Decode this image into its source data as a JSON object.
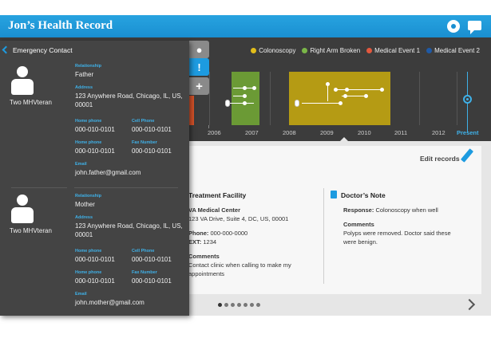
{
  "header": {
    "title": "Jon’s Health Record"
  },
  "legend": [
    {
      "label": "Colonoscopy",
      "color": "#e2bd1a"
    },
    {
      "label": "Right Arm Broken",
      "color": "#7ab648"
    },
    {
      "label": "Medical Event 1",
      "color": "#e2583e"
    },
    {
      "label": "Medical Event 2",
      "color": "#1f5aa6"
    }
  ],
  "timeline": {
    "years": [
      "2006",
      "2007",
      "2008",
      "2009",
      "2010",
      "2011",
      "2012"
    ],
    "present_label": "Present"
  },
  "panel": {
    "title": "Emergency Contact",
    "contacts": [
      {
        "name": "Two MHVteran",
        "relationship_label": "Relationship",
        "relationship": "Father",
        "address_label": "Address",
        "address": "123 Anywhere Road, Chicago, IL, US, 00001",
        "home_phone_label": "Home phone",
        "home_phone": "000-010-0101",
        "cell_phone_label": "Cell Phone",
        "cell_phone": "000-010-0101",
        "home_phone2_label": "Home phone",
        "home_phone2": "000-010-0101",
        "fax_label": "Fax Number",
        "fax": "000-010-0101",
        "email_label": "Email",
        "email": "john.father@gmail.com"
      },
      {
        "name": "Two MHVteran",
        "relationship_label": "Relationship",
        "relationship": "Mother",
        "address_label": "Address",
        "address": "123 Anywhere Road, Chicago, IL, US, 00001",
        "home_phone_label": "Home phone",
        "home_phone": "000-010-0101",
        "cell_phone_label": "Cell Phone",
        "cell_phone": "000-010-0101",
        "home_phone2_label": "Home phone",
        "home_phone2": "000-010-0101",
        "fax_label": "Fax Number",
        "fax": "000-010-0101",
        "email_label": "Email",
        "email": "john.mother@gmail.com"
      }
    ]
  },
  "card": {
    "edit_label": "Edit records",
    "facility": {
      "heading": "Treatment Facility",
      "name": "VA Medical Center",
      "address": "123 VA Drive, Suite 4, DC, US, 00001",
      "phone_label": "Phone:",
      "phone": "000-000-0000",
      "ext_label": "EXT:",
      "ext": "1234",
      "comments_label": "Comments",
      "comments": "Contact clinic when calling to make my appointments"
    },
    "note": {
      "heading": "Doctor’s Note",
      "response_label": "Response:",
      "response": "Colonoscopy when well",
      "comments_label": "Comments",
      "comments": "Polyps were removed. Doctor said these were benign."
    }
  }
}
